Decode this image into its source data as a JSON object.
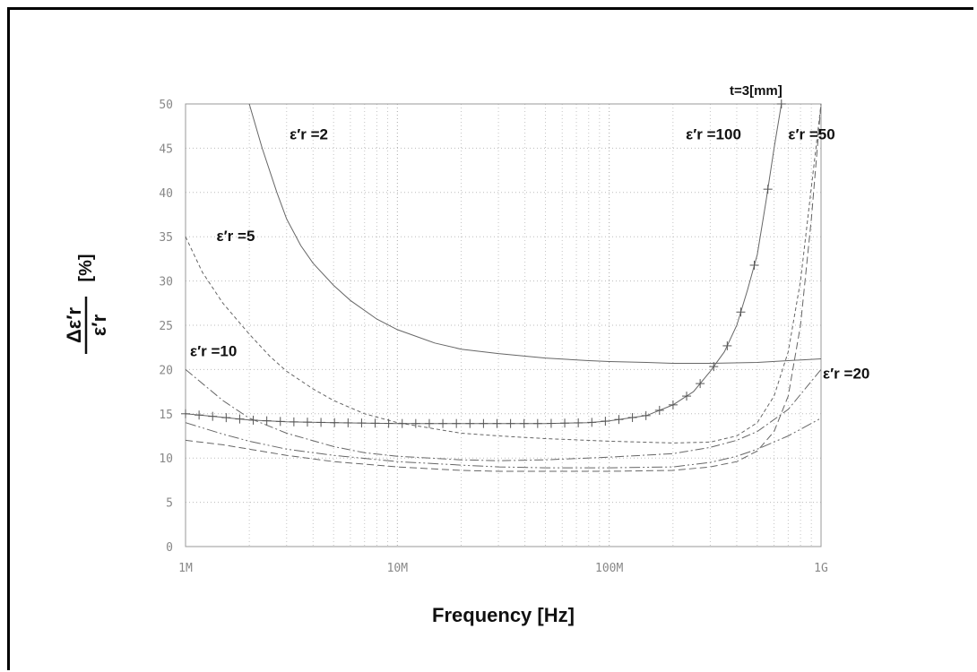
{
  "chart_data": {
    "type": "line",
    "xlabel": "Frequency [Hz]",
    "ylabel_numerator": "Δε′r",
    "ylabel_denominator": "ε′r",
    "ylabel_unit": "[%]",
    "corner_note": "t=3[mm]",
    "xscale": "log",
    "xlim": [
      1000000,
      1000000000
    ],
    "ylim": [
      0,
      50
    ],
    "x_ticks": [
      {
        "value": 1000000,
        "label": "1M"
      },
      {
        "value": 10000000,
        "label": "10M"
      },
      {
        "value": 100000000,
        "label": "100M"
      },
      {
        "value": 1000000000,
        "label": "1G"
      }
    ],
    "y_ticks": [
      {
        "value": 0,
        "label": "0"
      },
      {
        "value": 5,
        "label": "5"
      },
      {
        "value": 10,
        "label": "10"
      },
      {
        "value": 15,
        "label": "15"
      },
      {
        "value": 20,
        "label": "20"
      },
      {
        "value": 25,
        "label": "25"
      },
      {
        "value": 30,
        "label": "30"
      },
      {
        "value": 35,
        "label": "35"
      },
      {
        "value": 40,
        "label": "40"
      },
      {
        "value": 45,
        "label": "45"
      },
      {
        "value": 50,
        "label": "50"
      }
    ],
    "grid": true,
    "series": [
      {
        "name": "ε′r =2",
        "style": "solid",
        "label_at": {
          "x": 3100000,
          "y": 46
        },
        "x": [
          2000000,
          2300000,
          2700000,
          3000000,
          3500000,
          4000000,
          5000000,
          6000000,
          8000000,
          10000000,
          15000000,
          20000000,
          30000000,
          50000000,
          80000000,
          100000000,
          150000000,
          200000000,
          300000000,
          500000000,
          700000000,
          1000000000
        ],
        "y": [
          50,
          45,
          40,
          37,
          34,
          32,
          29.5,
          27.8,
          25.7,
          24.5,
          23,
          22.3,
          21.8,
          21.3,
          21,
          20.9,
          20.8,
          20.7,
          20.7,
          20.8,
          21,
          21.2
        ]
      },
      {
        "name": "ε′r =5",
        "style": "dashed",
        "label_at": {
          "x": 1400000,
          "y": 34.5
        },
        "x": [
          1000000,
          1200000,
          1500000,
          2000000,
          2500000,
          3000000,
          4000000,
          5000000,
          7000000,
          10000000,
          15000000,
          20000000,
          30000000,
          50000000,
          100000000,
          200000000,
          300000000,
          400000000,
          500000000,
          600000000,
          700000000,
          800000000,
          1000000000
        ],
        "y": [
          35,
          31,
          27.5,
          24,
          21.5,
          19.8,
          17.8,
          16.5,
          15,
          14,
          13.3,
          12.8,
          12.5,
          12.2,
          11.9,
          11.7,
          11.8,
          12.5,
          14,
          17,
          22,
          30,
          50
        ]
      },
      {
        "name": "ε′r =10",
        "style": "dashdot",
        "label_at": {
          "x": 1050000,
          "y": 21.5
        },
        "x": [
          1000000,
          1500000,
          2000000,
          3000000,
          5000000,
          7000000,
          10000000,
          20000000,
          30000000,
          50000000,
          100000000,
          200000000,
          300000000,
          400000000,
          500000000,
          700000000,
          1000000000
        ],
        "y": [
          20,
          16.5,
          14.5,
          12.8,
          11.3,
          10.6,
          10.2,
          9.8,
          9.7,
          9.8,
          10.1,
          10.5,
          11.2,
          12,
          13,
          15.5,
          20
        ]
      },
      {
        "name": "ε′r =20",
        "style": "dashdotdot",
        "label_at": {
          "x": 1020000000,
          "y": 19
        },
        "x": [
          1000000,
          1500000,
          2000000,
          3000000,
          5000000,
          10000000,
          20000000,
          30000000,
          50000000,
          100000000,
          200000000,
          300000000,
          400000000,
          500000000,
          700000000,
          1000000000
        ],
        "y": [
          14,
          12.7,
          11.9,
          11,
          10.3,
          9.6,
          9.2,
          9,
          8.9,
          8.9,
          9,
          9.5,
          10.2,
          11,
          12.5,
          14.5
        ]
      },
      {
        "name": "ε′r =50",
        "style": "longdash",
        "label_at": {
          "x": 700000000,
          "y": 46
        },
        "x": [
          1000000,
          1500000,
          2000000,
          3000000,
          5000000,
          10000000,
          20000000,
          30000000,
          50000000,
          100000000,
          200000000,
          300000000,
          400000000,
          500000000,
          600000000,
          700000000,
          800000000,
          900000000,
          1000000000
        ],
        "y": [
          12,
          11.5,
          11,
          10.3,
          9.6,
          9,
          8.6,
          8.5,
          8.5,
          8.5,
          8.6,
          9,
          9.6,
          10.8,
          13,
          17,
          25,
          37,
          50
        ]
      },
      {
        "name": "ε′r =100",
        "style": "solid-marked",
        "label_at": {
          "x": 230000000,
          "y": 46
        },
        "x": [
          1000000,
          1500000,
          2000000,
          3000000,
          5000000,
          10000000,
          20000000,
          30000000,
          50000000,
          80000000,
          100000000,
          150000000,
          200000000,
          250000000,
          300000000,
          350000000,
          400000000,
          450000000,
          500000000,
          550000000,
          600000000,
          650000000
        ],
        "y": [
          15,
          14.6,
          14.3,
          14.1,
          14,
          13.9,
          13.9,
          13.9,
          13.9,
          14,
          14.2,
          14.8,
          16,
          17.5,
          19.8,
          22,
          25,
          29,
          33,
          39,
          45,
          50
        ]
      }
    ]
  }
}
